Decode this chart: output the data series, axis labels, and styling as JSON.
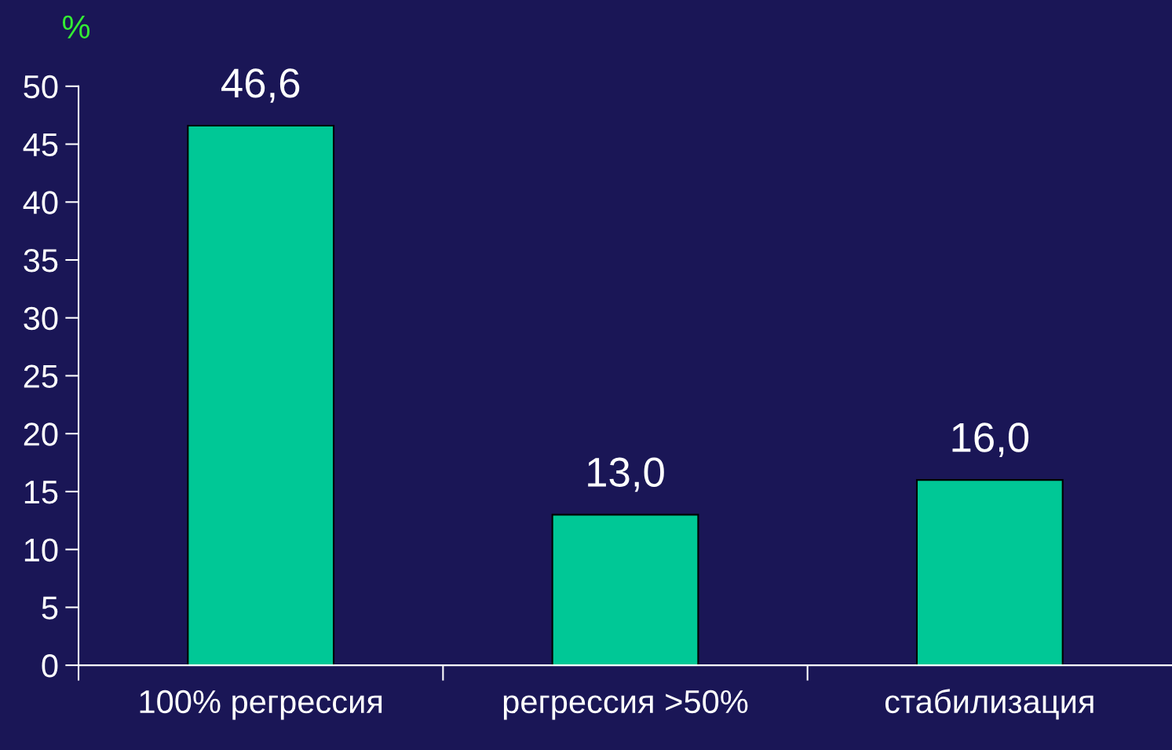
{
  "chart_data": {
    "type": "bar",
    "ylabel": "%",
    "categories": [
      "100% регрессия",
      "регрессия >50%",
      "стабилизация"
    ],
    "values": [
      46.6,
      13.0,
      16.0
    ],
    "value_labels": [
      "46,6",
      "13,0",
      "16,0"
    ],
    "color": "#00c896",
    "ylim": [
      0,
      50
    ],
    "yticks": [
      0,
      5,
      10,
      15,
      20,
      25,
      30,
      35,
      40,
      45,
      50
    ],
    "grid": false,
    "legend": false
  }
}
